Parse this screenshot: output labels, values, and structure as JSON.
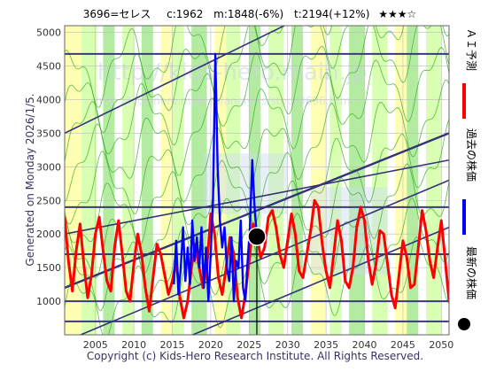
{
  "header": {
    "ticker": "3696=セレス",
    "current": "c:1962",
    "median": "m:1848(-6%)",
    "target": "t:2194(+12%)",
    "rating": "★★★☆"
  },
  "side_note": "Generated on Monday 2026/1/5.",
  "footer": "Copyright (c) Kids-Hero Research Institute. All Rights Reserved.",
  "watermark": {
    "line1": "http://kids-hero.main.jp",
    "line2": "http://kids-hero.main.jp/analysis/stock3696.html"
  },
  "colors": {
    "forecast": "#ff0000",
    "history": "#0000ff",
    "latest": "#000000",
    "band_light": "#ccff99",
    "band_mid": "#99e680",
    "band_yellow": "#ffff99",
    "band_blue": "#ccdcf0",
    "trend": "#333377",
    "level": "#3a3a7a"
  },
  "legend": [
    {
      "label": "ＡＩ予測",
      "type": "line",
      "color": "#ff0000"
    },
    {
      "label": "過去の株価",
      "type": "line",
      "color": "#0000ff"
    },
    {
      "label": "最新の株価",
      "type": "dot",
      "color": "#000000"
    }
  ],
  "chart_data": {
    "type": "line",
    "xlim": [
      2001,
      2051
    ],
    "ylim": [
      500,
      5100
    ],
    "x_ticks": [
      2005,
      2010,
      2015,
      2020,
      2025,
      2030,
      2035,
      2040,
      2045,
      2050
    ],
    "y_ticks": [
      1000,
      1500,
      2000,
      2500,
      3000,
      3500,
      4000,
      4500,
      5000
    ],
    "grid": true,
    "legend_position": "right",
    "latest_point": {
      "x": 2026.0,
      "y": 1962
    },
    "horizontal_levels": [
      4680,
      2400,
      1700,
      1000,
      700
    ],
    "trend_lines": [
      {
        "x1": 2001,
        "y1": 3500,
        "x2": 2051,
        "y2": 6300
      },
      {
        "x1": 2001,
        "y1": 2000,
        "x2": 2051,
        "y2": 3100
      },
      {
        "x1": 2001,
        "y1": 1200,
        "x2": 2051,
        "y2": 3500
      },
      {
        "x1": 2001,
        "y1": 400,
        "x2": 2051,
        "y2": 2800
      },
      {
        "x1": 2001,
        "y1": -300,
        "x2": 2051,
        "y2": 2100
      }
    ],
    "vertical_marker_x": 2026.0,
    "series": [
      {
        "name": "ＡＩ予測",
        "values_x": [
          2001.0,
          2001.5,
          2002.0,
          2002.5,
          2003.0,
          2003.5,
          2004.0,
          2004.5,
          2005.0,
          2005.5,
          2006.0,
          2006.5,
          2007.0,
          2007.5,
          2008.0,
          2008.5,
          2009.0,
          2009.5,
          2010.0,
          2010.5,
          2011.0,
          2011.5,
          2012.0,
          2012.5,
          2013.0,
          2013.5,
          2014.0,
          2014.5,
          2015.0,
          2015.5,
          2016.0,
          2016.5,
          2017.0,
          2017.5,
          2018.0,
          2018.5,
          2019.0,
          2019.5,
          2020.0,
          2020.5,
          2021.0,
          2021.5,
          2022.0,
          2022.5,
          2023.0,
          2023.5,
          2024.0,
          2024.5,
          2025.0,
          2025.5,
          2026.0,
          2026.5,
          2027.0,
          2027.5,
          2028.0,
          2028.5,
          2029.0,
          2029.5,
          2030.0,
          2030.5,
          2031.0,
          2031.5,
          2032.0,
          2032.5,
          2033.0,
          2033.5,
          2034.0,
          2034.5,
          2035.0,
          2035.5,
          2036.0,
          2036.5,
          2037.0,
          2037.5,
          2038.0,
          2038.5,
          2039.0,
          2039.5,
          2040.0,
          2040.5,
          2041.0,
          2041.5,
          2042.0,
          2042.5,
          2043.0,
          2043.5,
          2044.0,
          2044.5,
          2045.0,
          2045.5,
          2046.0,
          2046.5,
          2047.0,
          2047.5,
          2048.0,
          2048.5,
          2049.0,
          2049.5,
          2050.0,
          2050.5,
          2051.0
        ],
        "values": [
          2250,
          1600,
          1150,
          1750,
          2150,
          1550,
          1050,
          1400,
          2000,
          2250,
          1750,
          1300,
          1150,
          1800,
          2200,
          1700,
          1150,
          1000,
          1550,
          2000,
          1700,
          1200,
          850,
          1350,
          1850,
          1700,
          1400,
          1100,
          1300,
          1600,
          1050,
          750,
          1000,
          1500,
          1850,
          1500,
          1200,
          1500,
          2300,
          2000,
          1350,
          1100,
          1500,
          1950,
          1700,
          1050,
          750,
          1100,
          1600,
          2150,
          2000,
          1650,
          1800,
          2250,
          2350,
          2100,
          1700,
          1500,
          1900,
          2300,
          2000,
          1450,
          1350,
          1700,
          2050,
          2500,
          2400,
          1850,
          1450,
          1200,
          1700,
          2200,
          1900,
          1300,
          1200,
          1500,
          2100,
          2400,
          2200,
          1600,
          1250,
          1550,
          2050,
          2000,
          1550,
          1100,
          900,
          1400,
          1900,
          1650,
          1200,
          1250,
          1800,
          2350,
          2050,
          1600,
          1350,
          1800,
          2200,
          1600,
          1000
        ]
      },
      {
        "name": "過去の株価",
        "values_x": [
          2015.2,
          2015.5,
          2015.8,
          2016.1,
          2016.4,
          2016.7,
          2017.0,
          2017.3,
          2017.6,
          2017.9,
          2018.2,
          2018.5,
          2018.8,
          2019.1,
          2019.4,
          2019.7,
          2020.0,
          2020.3,
          2020.6,
          2020.9,
          2021.2,
          2021.5,
          2021.8,
          2022.1,
          2022.4,
          2022.7,
          2023.0,
          2023.3,
          2023.6,
          2023.9,
          2024.2,
          2024.5,
          2024.8,
          2025.1,
          2025.4,
          2025.7,
          2026.0
        ],
        "values": [
          1250,
          1900,
          1100,
          1500,
          2100,
          1300,
          1800,
          1250,
          2200,
          1600,
          1950,
          1500,
          2100,
          1200,
          1800,
          1000,
          1700,
          2500,
          4680,
          3000,
          2200,
          1800,
          2100,
          1500,
          1300,
          1950,
          1000,
          1600,
          1500,
          2200,
          1200,
          1000,
          1600,
          2100,
          3100,
          2400,
          1962
        ]
      }
    ]
  }
}
